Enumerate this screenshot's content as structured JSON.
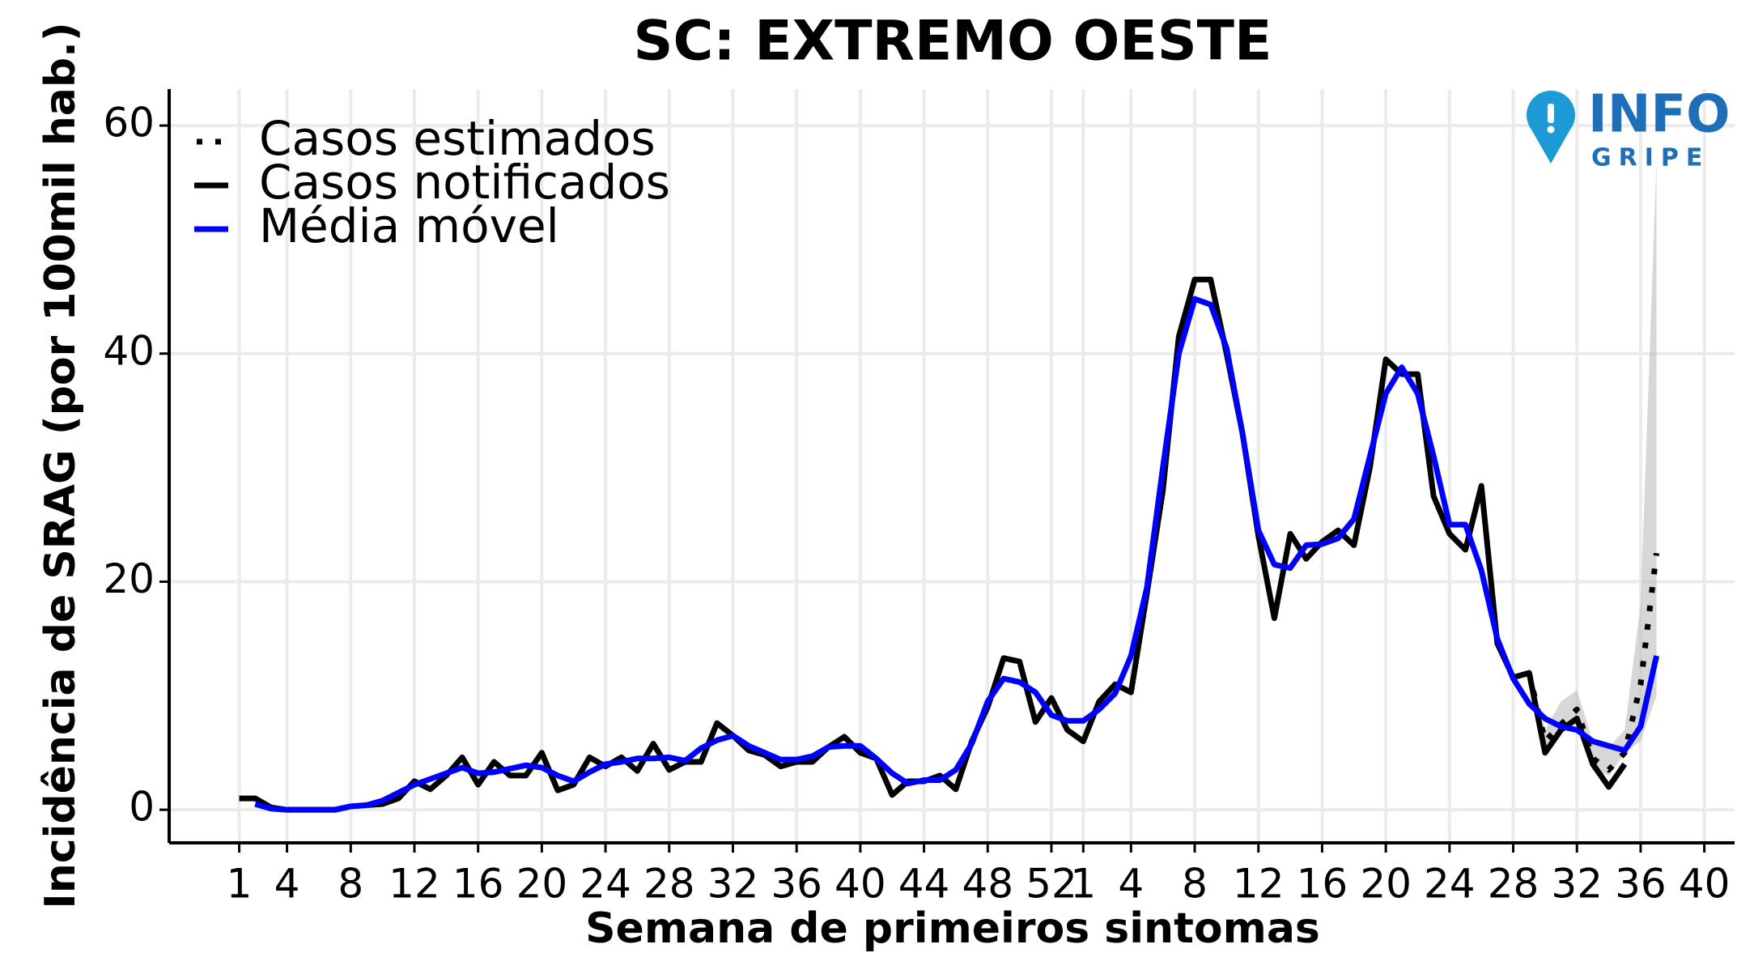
{
  "chart_data": {
    "type": "line",
    "title": "SC: EXTREMO OESTE",
    "xlabel": "Semana de primeiros sintomas",
    "ylabel": "Incidência de SRAG (por 100mil hab.)",
    "logo": {
      "line1": "INFO",
      "line2": "GRIPE"
    },
    "x": [
      0,
      1,
      2,
      3,
      4,
      5,
      6,
      7,
      8,
      9,
      10,
      11,
      12,
      13,
      14,
      15,
      16,
      17,
      18,
      19,
      20,
      21,
      22,
      23,
      24,
      25,
      26,
      27,
      28,
      29,
      30,
      31,
      32,
      33,
      34,
      35,
      36,
      37,
      38,
      39,
      40,
      41,
      42,
      43,
      44,
      45,
      46,
      47,
      48,
      49,
      50,
      51,
      52,
      53,
      54,
      55,
      56,
      57,
      58,
      59,
      60,
      61,
      62,
      63,
      64,
      65,
      66,
      67,
      68,
      69,
      70,
      71,
      72,
      73,
      74,
      75,
      76,
      77,
      78,
      79,
      80,
      81,
      82,
      83,
      84,
      85,
      86,
      87,
      88,
      89
    ],
    "series": [
      {
        "name": "Casos estimados",
        "color": "#000000",
        "style": "dotted",
        "values": [
          null,
          null,
          null,
          null,
          null,
          null,
          null,
          null,
          null,
          null,
          null,
          null,
          null,
          null,
          null,
          null,
          null,
          null,
          null,
          null,
          null,
          null,
          null,
          null,
          null,
          null,
          null,
          null,
          null,
          null,
          null,
          null,
          null,
          null,
          null,
          null,
          null,
          null,
          null,
          null,
          null,
          null,
          null,
          null,
          null,
          null,
          null,
          null,
          null,
          null,
          null,
          null,
          null,
          null,
          null,
          null,
          null,
          null,
          null,
          null,
          null,
          null,
          null,
          null,
          null,
          null,
          null,
          null,
          null,
          null,
          null,
          null,
          null,
          null,
          null,
          null,
          null,
          null,
          null,
          null,
          null,
          12.0,
          6.0,
          7.5,
          8.8,
          4.5,
          3.5,
          5.0,
          11,
          22.5
        ]
      },
      {
        "name": "Casos notificados",
        "color": "#000000",
        "style": "solid",
        "values": [
          1.0,
          1.0,
          0.2,
          0,
          0,
          0,
          0,
          0.3,
          0.4,
          0.5,
          1.0,
          2.5,
          1.8,
          3.0,
          4.6,
          2.2,
          4.2,
          3.0,
          3.0,
          5.0,
          1.7,
          2.2,
          4.6,
          3.8,
          4.6,
          3.4,
          5.8,
          3.5,
          4.2,
          4.2,
          7.6,
          6.5,
          5.2,
          4.8,
          3.8,
          4.2,
          4.2,
          5.5,
          6.4,
          5.0,
          4.5,
          1.3,
          2.5,
          2.5,
          3.0,
          1.8,
          6.0,
          9.0,
          13.3,
          13.0,
          7.7,
          9.8,
          7.0,
          6.0,
          9.5,
          11.0,
          10.3,
          19,
          28,
          41.5,
          46.5,
          46.5,
          40,
          33,
          24,
          16.8,
          24.2,
          22,
          23.5,
          24.5,
          23.2,
          30,
          39.5,
          38.2,
          38.2,
          27.5,
          24.2,
          22.8,
          28.4,
          14.6,
          11.6,
          12.0,
          5.0,
          7.0,
          8.0,
          4.0,
          2.0,
          4.0,
          null,
          null
        ]
      },
      {
        "name": "Média móvel",
        "color": "#0000ff",
        "style": "solid",
        "values": [
          null,
          0.5,
          0.1,
          0,
          0,
          0,
          0,
          0.3,
          0.4,
          0.8,
          1.5,
          2.2,
          2.7,
          3.2,
          3.7,
          3.2,
          3.3,
          3.6,
          3.9,
          3.7,
          3.0,
          2.5,
          3.3,
          4.0,
          4.2,
          4.5,
          4.5,
          4.6,
          4.3,
          5.4,
          6.1,
          6.5,
          5.6,
          5.0,
          4.4,
          4.4,
          4.7,
          5.5,
          5.6,
          5.6,
          4.5,
          3.2,
          2.3,
          2.6,
          2.6,
          3.5,
          5.8,
          9.5,
          11.5,
          11.2,
          10.3,
          8.3,
          7.8,
          7.8,
          8.8,
          10.2,
          13.5,
          19.5,
          30,
          40,
          44.8,
          44.3,
          40.5,
          33,
          24.5,
          21.5,
          21.2,
          23.2,
          23.3,
          23.8,
          25.5,
          31,
          36.5,
          38.8,
          36.5,
          31,
          25,
          25,
          21,
          15,
          11.5,
          9.3,
          8.0,
          7.3,
          7.0,
          6.0,
          5.6,
          5.2,
          7.3,
          13.5
        ]
      }
    ],
    "band": {
      "color": "#bdbdbd",
      "x": [
        81,
        82,
        83,
        84,
        85,
        86,
        87,
        88,
        89
      ],
      "lower": [
        11,
        5,
        7,
        7.5,
        3.5,
        3,
        5,
        6,
        10
      ],
      "upper": [
        12.5,
        7,
        9.5,
        10.5,
        6,
        5.5,
        7,
        18,
        57
      ]
    },
    "xlim": [
      -4.4,
      93.9
    ],
    "xticks": [
      {
        "value": 0,
        "label": "1"
      },
      {
        "value": 3,
        "label": "4"
      },
      {
        "value": 7,
        "label": "8"
      },
      {
        "value": 11,
        "label": "12"
      },
      {
        "value": 15,
        "label": "16"
      },
      {
        "value": 19,
        "label": "20"
      },
      {
        "value": 23,
        "label": "24"
      },
      {
        "value": 27,
        "label": "28"
      },
      {
        "value": 31,
        "label": "32"
      },
      {
        "value": 35,
        "label": "36"
      },
      {
        "value": 39,
        "label": "40"
      },
      {
        "value": 43,
        "label": "44"
      },
      {
        "value": 47,
        "label": "48"
      },
      {
        "value": 51,
        "label": "52"
      },
      {
        "value": 53,
        "label": "1"
      },
      {
        "value": 56,
        "label": "4"
      },
      {
        "value": 60,
        "label": "8"
      },
      {
        "value": 64,
        "label": "12"
      },
      {
        "value": 68,
        "label": "16"
      },
      {
        "value": 72,
        "label": "20"
      },
      {
        "value": 76,
        "label": "24"
      },
      {
        "value": 80,
        "label": "28"
      },
      {
        "value": 84,
        "label": "32"
      },
      {
        "value": 88,
        "label": "36"
      },
      {
        "value": 92,
        "label": "40"
      }
    ],
    "ylim": [
      -2.9,
      63.2
    ],
    "yticks": [
      0,
      20,
      40,
      60
    ],
    "grid": true,
    "legend": "top-left"
  }
}
